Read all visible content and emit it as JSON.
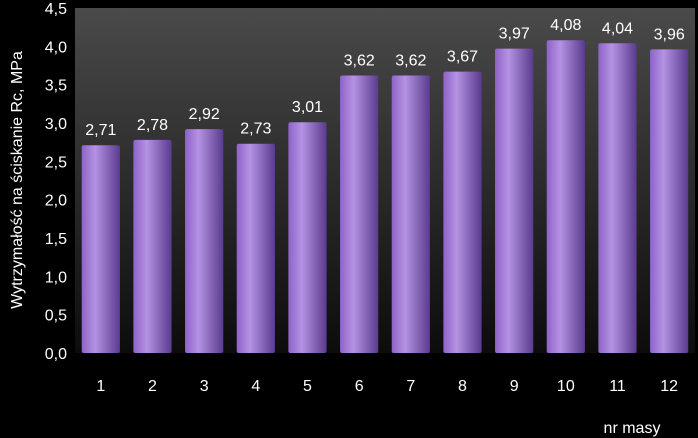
{
  "chart_data": {
    "type": "bar",
    "title": "",
    "xlabel": "nr masy",
    "ylabel": "Wytrzymałość na ściskanie Rc, MPa",
    "categories": [
      "1",
      "2",
      "3",
      "4",
      "5",
      "6",
      "7",
      "8",
      "9",
      "10",
      "11",
      "12"
    ],
    "values": [
      2.71,
      2.78,
      2.92,
      2.73,
      3.01,
      3.62,
      3.62,
      3.67,
      3.97,
      4.08,
      4.04,
      3.96
    ],
    "value_labels": [
      "2,71",
      "2,78",
      "2,92",
      "2,73",
      "3,01",
      "3,62",
      "3,62",
      "3,67",
      "3,97",
      "4,08",
      "4,04",
      "3,96"
    ],
    "yticks": [
      "0,0",
      "0,5",
      "1,0",
      "1,5",
      "2,0",
      "2,5",
      "3,0",
      "3,5",
      "4,0",
      "4,5"
    ],
    "ylim": [
      0,
      4.5
    ],
    "grid": false,
    "legend": "none",
    "colors": {
      "bar_light": "#b592e3",
      "bar_mid": "#8e63c8",
      "bar_dark": "#5a3b8d",
      "plot_top": "#4a4a4a",
      "plot_bottom": "#0c0c0c",
      "background": "#000000",
      "text": "#ffffff"
    }
  }
}
